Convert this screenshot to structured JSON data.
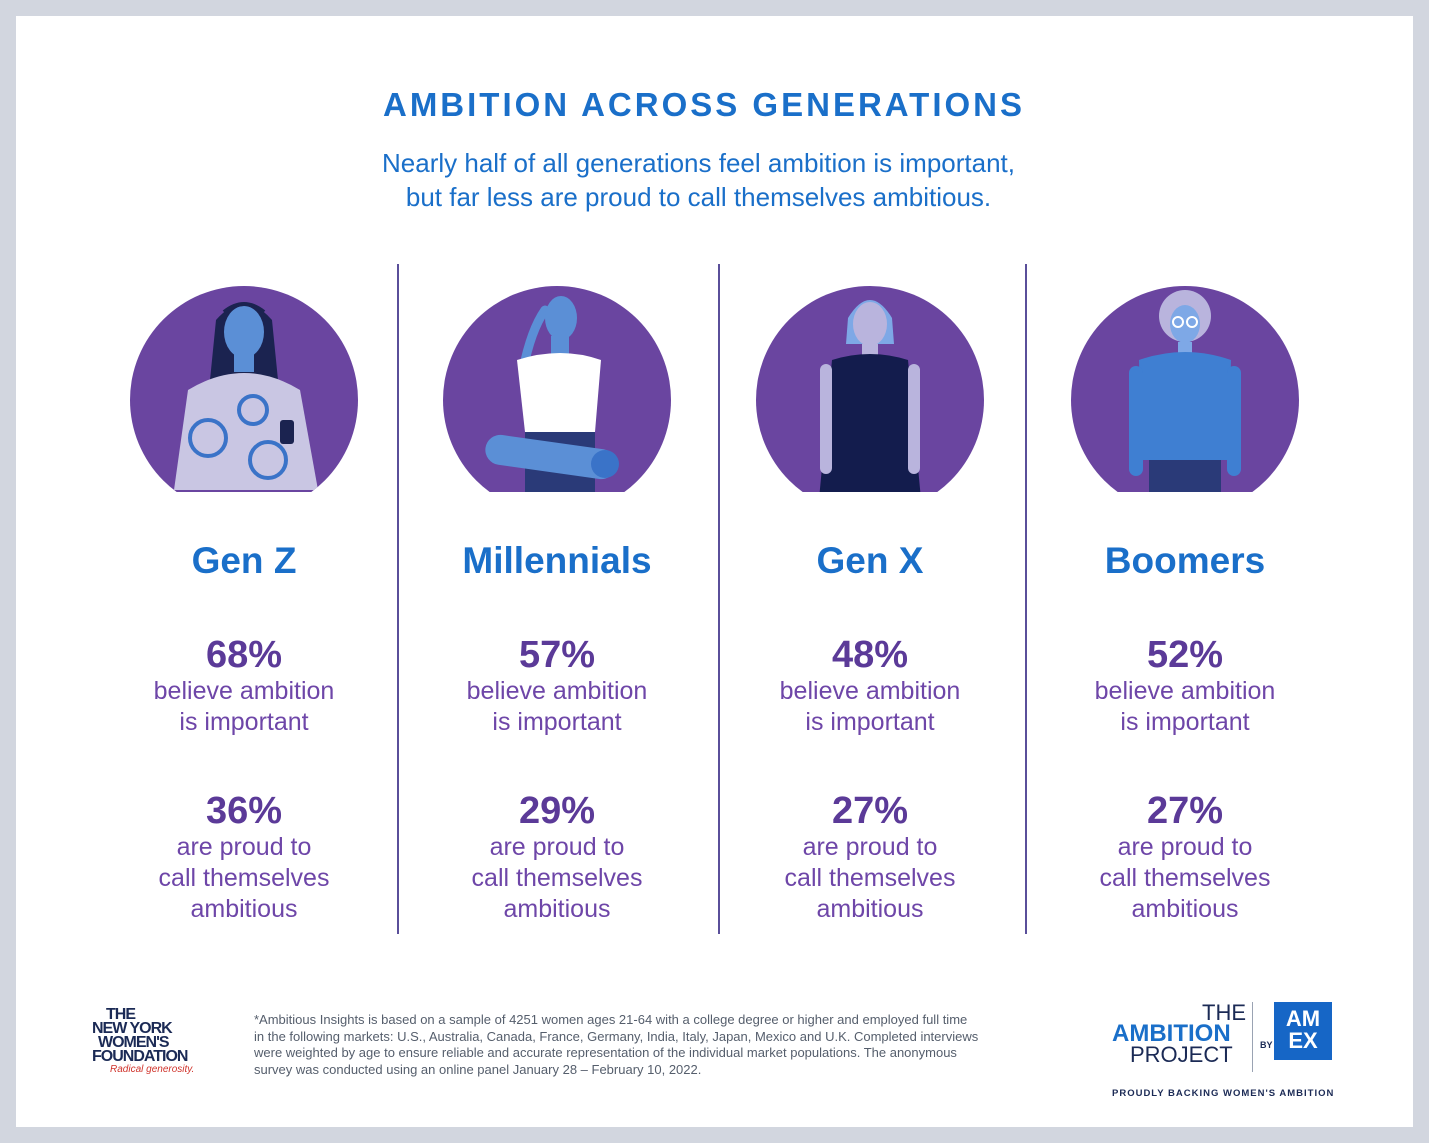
{
  "title": "AMBITION ACROSS GENERATIONS",
  "subtitle": {
    "line1": "Nearly half of all generations feel ambition is important,",
    "line2": "but far less are proud to call themselves ambitious."
  },
  "generations": [
    {
      "name": "Gen Z",
      "important_pct": "68%",
      "important_l1": "believe ambition",
      "important_l2": "is important",
      "proud_pct": "36%",
      "proud_l1": "are proud to",
      "proud_l2": "call themselves",
      "proud_l3": "ambitious"
    },
    {
      "name": "Millennials",
      "important_pct": "57%",
      "important_l1": "believe ambition",
      "important_l2": "is important",
      "proud_pct": "29%",
      "proud_l1": "are proud to",
      "proud_l2": "call themselves",
      "proud_l3": "ambitious"
    },
    {
      "name": "Gen X",
      "important_pct": "48%",
      "important_l1": "believe ambition",
      "important_l2": "is important",
      "proud_pct": "27%",
      "proud_l1": "are proud to",
      "proud_l2": "call themselves",
      "proud_l3": "ambitious"
    },
    {
      "name": "Boomers",
      "important_pct": "52%",
      "important_l1": "believe ambition",
      "important_l2": "is important",
      "proud_pct": "27%",
      "proud_l1": "are proud to",
      "proud_l2": "call themselves",
      "proud_l3": "ambitious"
    }
  ],
  "footnote": {
    "line1": "*Ambitious Insights is based on a sample of 4251 women ages 21-64 with a college degree or higher and employed full time",
    "line2": "in the following markets: U.S., Australia, Canada, France, Germany, India, Italy, Japan, Mexico and U.K. Completed interviews",
    "line3": "were weighted by age to ensure reliable and accurate representation of the individual market populations. The anonymous",
    "line4": "survey was conducted using an online panel January 28 – February 10, 2022."
  },
  "nywf_logo": {
    "l1": "THE",
    "l2": "NEW YORK",
    "l3": "WOMEN'S",
    "l4": "FOUNDATION",
    "tagline": "Radical generosity."
  },
  "ambition_logo": {
    "the": "THE",
    "ambition": "AMBITION",
    "project": "PROJECT",
    "by": "BY",
    "amex_l1": "AM",
    "amex_l2": "EX",
    "tagline": "PROUDLY BACKING WOMEN'S AMBITION"
  },
  "colors": {
    "circle": "#6a45a0",
    "title_blue": "#1a6fc9",
    "stat_purple": "#5b3a98",
    "divider": "#5a4f9a"
  },
  "icons": [
    "gen-z-woman-illustration",
    "millennial-woman-illustration",
    "gen-x-woman-illustration",
    "boomer-woman-illustration"
  ]
}
